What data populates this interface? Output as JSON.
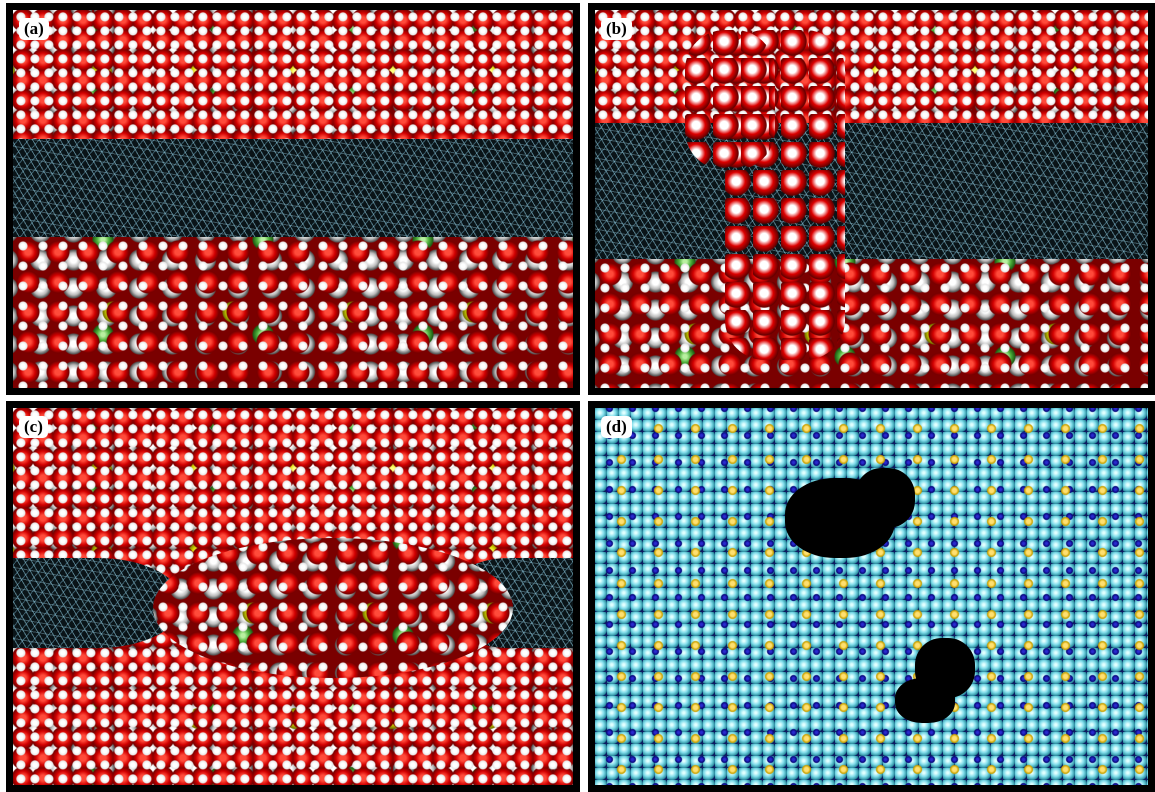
{
  "panels": [
    {
      "label": "(a)"
    },
    {
      "label": "(b)"
    },
    {
      "label": "(c)"
    },
    {
      "label": "(d)"
    }
  ]
}
